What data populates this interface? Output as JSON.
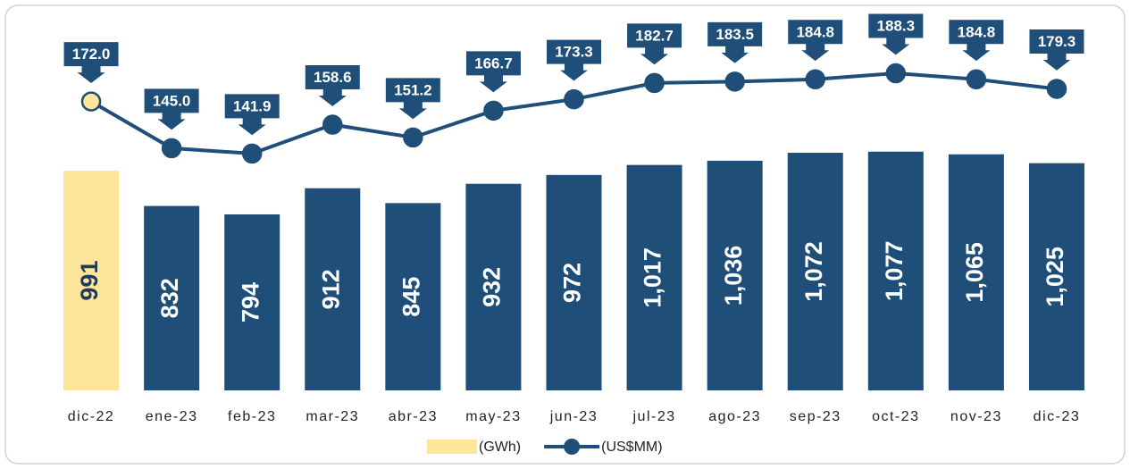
{
  "chart_data": {
    "type": "bar",
    "categories": [
      "dic-22",
      "ene-23",
      "feb-23",
      "mar-23",
      "abr-23",
      "may-23",
      "jun-23",
      "jul-23",
      "ago-23",
      "sep-23",
      "oct-23",
      "nov-23",
      "dic-23"
    ],
    "series": [
      {
        "name": "(GWh)",
        "type": "bar",
        "color": "#1f4e79",
        "colors": [
          "#fde699",
          "#1f4e79",
          "#1f4e79",
          "#1f4e79",
          "#1f4e79",
          "#1f4e79",
          "#1f4e79",
          "#1f4e79",
          "#1f4e79",
          "#1f4e79",
          "#1f4e79",
          "#1f4e79",
          "#1f4e79"
        ],
        "values": [
          991,
          832,
          794,
          912,
          845,
          932,
          972,
          1017,
          1036,
          1072,
          1077,
          1065,
          1025
        ],
        "value_labels": [
          "991",
          "832",
          "794",
          "912",
          "845",
          "932",
          "972",
          "1,017",
          "1,036",
          "1,072",
          "1,077",
          "1,065",
          "1,025"
        ]
      },
      {
        "name": "(US$MM)",
        "type": "line",
        "axis": "y2",
        "color": "#1f4e79",
        "marker_colors": [
          "#fde699",
          "#1f4e79",
          "#1f4e79",
          "#1f4e79",
          "#1f4e79",
          "#1f4e79",
          "#1f4e79",
          "#1f4e79",
          "#1f4e79",
          "#1f4e79",
          "#1f4e79",
          "#1f4e79",
          "#1f4e79"
        ],
        "values": [
          172.0,
          145.0,
          141.9,
          158.6,
          151.2,
          166.7,
          173.3,
          182.7,
          183.5,
          184.8,
          188.3,
          184.8,
          179.3
        ],
        "value_labels": [
          "172.0",
          "145.0",
          "141.9",
          "158.6",
          "151.2",
          "166.7",
          "173.3",
          "182.7",
          "183.5",
          "184.8",
          "188.3",
          "184.8",
          "179.3"
        ]
      }
    ],
    "ylim": [
      0,
      1600
    ],
    "y2lim": [
      5,
      210
    ],
    "legend": "bottom"
  }
}
